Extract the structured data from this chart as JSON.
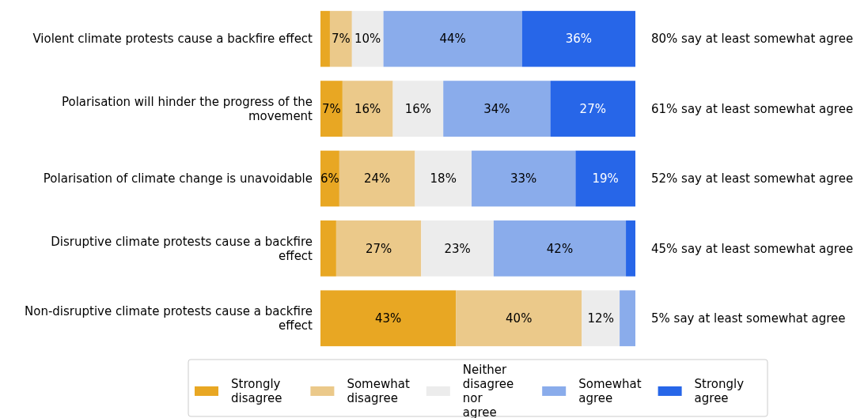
{
  "chart_data": {
    "type": "bar",
    "orientation": "horizontal",
    "stacked": true,
    "xlim": [
      0,
      100
    ],
    "legend": "bottom",
    "categories": [
      "Violent climate protests cause a backfire effect",
      "Polarisation will hinder the progress of the movement",
      "Polarisation of climate change is unavoidable",
      "Disruptive climate protests cause a backfire effect",
      "Non-disruptive climate protests cause a backfire effect"
    ],
    "series": [
      {
        "name": "Strongly disagree",
        "color": "#e8a723",
        "values": [
          3,
          7,
          6,
          5,
          43
        ],
        "value_labels": [
          null,
          "7%",
          "6%",
          null,
          "43%"
        ]
      },
      {
        "name": "Somewhat disagree",
        "color": "#ebc98a",
        "values": [
          7,
          16,
          24,
          27,
          40
        ],
        "value_labels": [
          "7%",
          "16%",
          "24%",
          "27%",
          "40%"
        ]
      },
      {
        "name": "Neither disagree nor agree",
        "color": "#ececec",
        "values": [
          10,
          16,
          18,
          23,
          12
        ],
        "value_labels": [
          "10%",
          "16%",
          "18%",
          "23%",
          "12%"
        ]
      },
      {
        "name": "Somewhat agree",
        "color": "#8aaceb",
        "values": [
          44,
          34,
          33,
          42,
          5
        ],
        "value_labels": [
          "44%",
          "34%",
          "33%",
          "42%",
          null
        ]
      },
      {
        "name": "Strongly agree",
        "color": "#2766e8",
        "values": [
          36,
          27,
          19,
          3,
          0
        ],
        "value_labels": [
          "36%",
          "27%",
          "19%",
          null,
          null
        ]
      }
    ],
    "annotations": [
      "80% say at least somewhat agree",
      "61% say at least somewhat agree",
      "52% say at least somewhat agree",
      "45% say at least somewhat agree",
      "5% say at least somewhat agree"
    ]
  }
}
